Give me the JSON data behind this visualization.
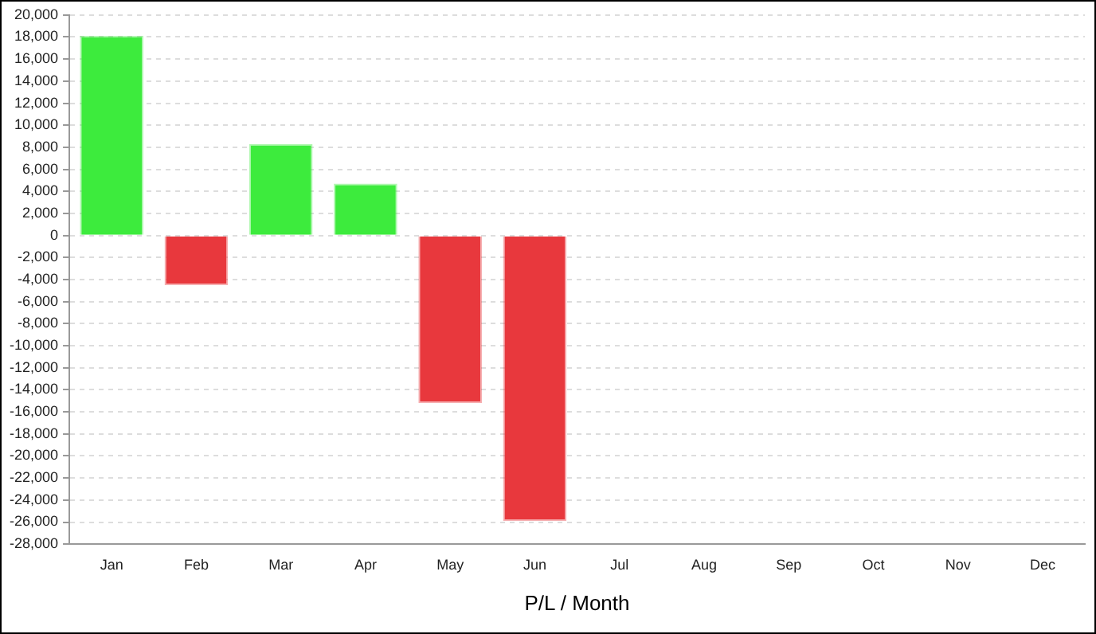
{
  "chart_data": {
    "type": "bar",
    "xlabel": "P/L / Month",
    "categories": [
      "Jan",
      "Feb",
      "Mar",
      "Apr",
      "May",
      "Jun",
      "Jul",
      "Aug",
      "Sep",
      "Oct",
      "Nov",
      "Dec"
    ],
    "values": [
      18100,
      -4500,
      8300,
      4700,
      -15200,
      -25900,
      null,
      null,
      null,
      null,
      null,
      null
    ],
    "colors": [
      "#3deb3d",
      "#e8383d",
      "#3deb3d",
      "#3deb3d",
      "#e8383d",
      "#e8383d",
      null,
      null,
      null,
      null,
      null,
      null
    ],
    "ylim": [
      -28000,
      20000
    ],
    "yticks": [
      {
        "value": -28000,
        "label": "-28,000"
      },
      {
        "value": -26000,
        "label": "-26,000"
      },
      {
        "value": -24000,
        "label": "-24,000"
      },
      {
        "value": -22000,
        "label": "-22,000"
      },
      {
        "value": -20000,
        "label": "-20,000"
      },
      {
        "value": -18000,
        "label": "-18,000"
      },
      {
        "value": -16000,
        "label": "-16,000"
      },
      {
        "value": -14000,
        "label": "-14,000"
      },
      {
        "value": -12000,
        "label": "-12,000"
      },
      {
        "value": -10000,
        "label": "-10,000"
      },
      {
        "value": -8000,
        "label": "-8,000"
      },
      {
        "value": -6000,
        "label": "-6,000"
      },
      {
        "value": -4000,
        "label": "-4,000"
      },
      {
        "value": -2000,
        "label": "-2,000"
      },
      0,
      {
        "value": 2000,
        "label": "2,000"
      },
      {
        "value": 4000,
        "label": "4,000"
      },
      {
        "value": 6000,
        "label": "6,000"
      },
      {
        "value": 8000,
        "label": "8,000"
      },
      {
        "value": 10000,
        "label": "10,000"
      },
      {
        "value": 12000,
        "label": "12,000"
      },
      {
        "value": 14000,
        "label": "14,000"
      },
      {
        "value": 16000,
        "label": "16,000"
      },
      {
        "value": 18000,
        "label": "18,000"
      },
      {
        "value": 20000,
        "label": "20,000"
      }
    ],
    "grid": "y",
    "legend": false
  }
}
